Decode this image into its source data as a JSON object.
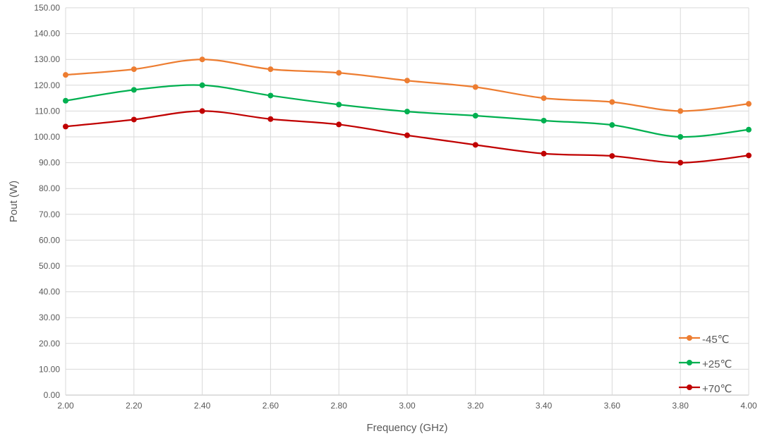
{
  "chart_data": {
    "type": "line",
    "title": "",
    "xlabel": "Frequency (GHz)",
    "ylabel": "Pout (W)",
    "xlim": [
      2.0,
      4.0
    ],
    "ylim": [
      0,
      150
    ],
    "x_ticks": [
      "2.00",
      "2.20",
      "2.40",
      "2.60",
      "2.80",
      "3.00",
      "3.20",
      "3.40",
      "3.60",
      "3.80",
      "4.00"
    ],
    "y_ticks": [
      "0.00",
      "10.00",
      "20.00",
      "30.00",
      "40.00",
      "50.00",
      "60.00",
      "70.00",
      "80.00",
      "90.00",
      "100.00",
      "110.00",
      "120.00",
      "130.00",
      "140.00",
      "150.00"
    ],
    "grid": true,
    "legend_position": "bottom-right",
    "x": [
      2.0,
      2.2,
      2.4,
      2.6,
      2.8,
      3.0,
      3.2,
      3.4,
      3.6,
      3.8,
      4.0
    ],
    "series": [
      {
        "name": "-45℃",
        "color": "#ed7d31",
        "values": [
          124.0,
          126.2,
          130.0,
          126.2,
          124.8,
          121.8,
          119.3,
          115.0,
          113.5,
          110.0,
          112.8
        ]
      },
      {
        "name": "+25℃",
        "color": "#00b050",
        "values": [
          114.0,
          118.2,
          120.0,
          116.0,
          112.5,
          109.8,
          108.2,
          106.3,
          104.6,
          100.0,
          102.8
        ]
      },
      {
        "name": "+70℃",
        "color": "#c00000",
        "values": [
          104.0,
          106.7,
          110.0,
          106.9,
          104.8,
          100.6,
          96.9,
          93.5,
          92.6,
          90.0,
          92.8
        ]
      }
    ]
  }
}
